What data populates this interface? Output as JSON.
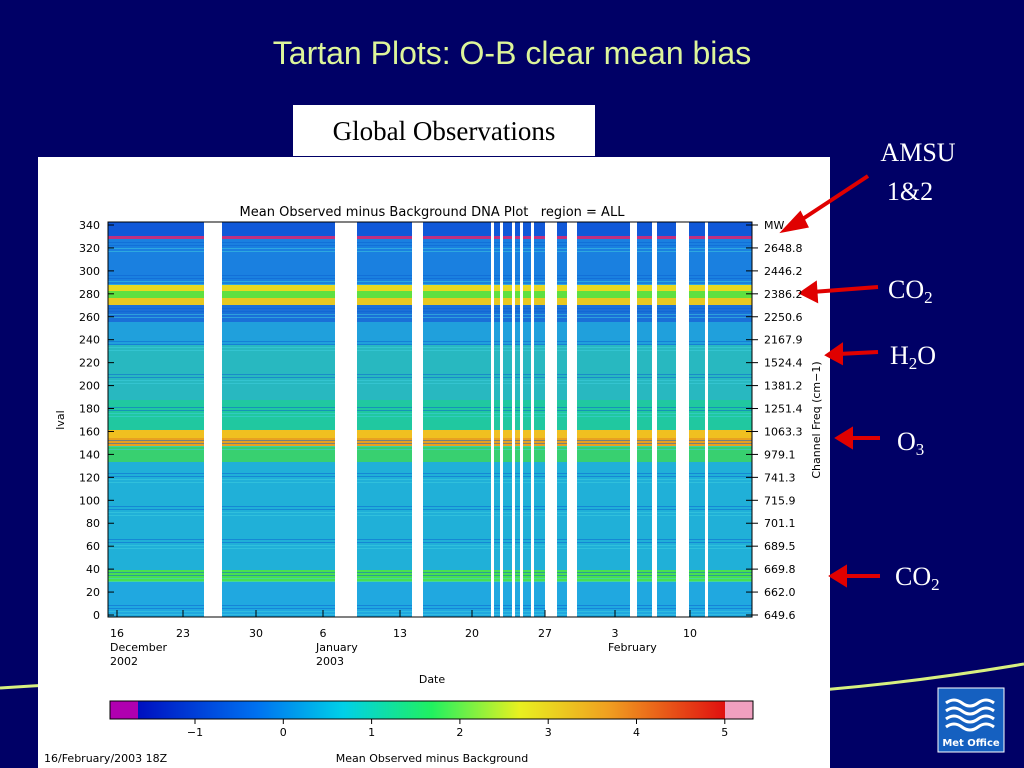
{
  "title": "Tartan Plots: O-B clear mean bias",
  "caption": "Global Observations",
  "plot": {
    "title": "Mean Observed minus Background DNA Plot   region = ALL",
    "y_label": "lval",
    "y_ticks": [
      "340",
      "320",
      "300",
      "280",
      "260",
      "240",
      "220",
      "200",
      "180",
      "160",
      "140",
      "120",
      "100",
      "80",
      "60",
      "40",
      "20",
      "0"
    ],
    "y2_label": "Channel Freq (cm−1)",
    "y2_ticks": [
      "MW",
      "2648.8",
      "2446.2",
      "2386.2",
      "2250.6",
      "2167.9",
      "1524.4",
      "1381.2",
      "1251.4",
      "1063.3",
      "979.1",
      "741.3",
      "715.9",
      "701.1",
      "689.5",
      "669.8",
      "662.0",
      "649.6"
    ],
    "x_ticks": [
      {
        "day": "16",
        "month": "December",
        "year": "2002"
      },
      {
        "day": "23"
      },
      {
        "day": "30"
      },
      {
        "day": "6",
        "month": "January",
        "year": "2003"
      },
      {
        "day": "13"
      },
      {
        "day": "20"
      },
      {
        "day": "27"
      },
      {
        "day": "3",
        "month": "February"
      },
      {
        "day": "10"
      }
    ],
    "x_label": "Date",
    "colorbar_ticks": [
      "−1",
      "0",
      "1",
      "2",
      "3",
      "4",
      "5"
    ],
    "colorbar_label": "Mean Observed minus Background",
    "timestamp": "16/February/2003 18Z"
  },
  "annotations": [
    {
      "text": "AMSU",
      "text2": "1&2"
    },
    {
      "text": "CO",
      "sub": "2"
    },
    {
      "text": "H",
      "sub": "2",
      "text2": "O"
    },
    {
      "text": "O",
      "sub": "3"
    },
    {
      "text": "CO",
      "sub": "2"
    }
  ],
  "logo": "Met Office"
}
